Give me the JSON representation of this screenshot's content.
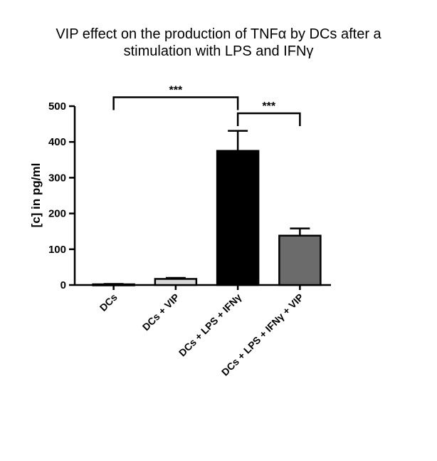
{
  "chart_data": {
    "type": "bar",
    "title": [
      "VIP effect on the production of TNFα by DCs after a",
      "stimulation with LPS and IFNγ"
    ],
    "ylabel": "[c] in pg/ml",
    "xlabel": "",
    "ylim": [
      0,
      500
    ],
    "yticks": [
      0,
      100,
      200,
      300,
      400,
      500
    ],
    "categories": [
      "DCs",
      "DCs + VIP",
      "DCs + LPS + IFNγ",
      "DCs + LPS + IFNγ + VIP"
    ],
    "values": [
      2,
      17,
      375,
      138
    ],
    "errors": [
      1,
      3,
      56,
      20
    ],
    "colors": [
      "#ffffff",
      "#d9d9d9",
      "#000000",
      "#6b6b6b"
    ],
    "significance": [
      {
        "from": 0,
        "to": 2,
        "label": "***",
        "y": 525
      },
      {
        "from": 2,
        "to": 3,
        "label": "***",
        "y": 480
      }
    ]
  }
}
